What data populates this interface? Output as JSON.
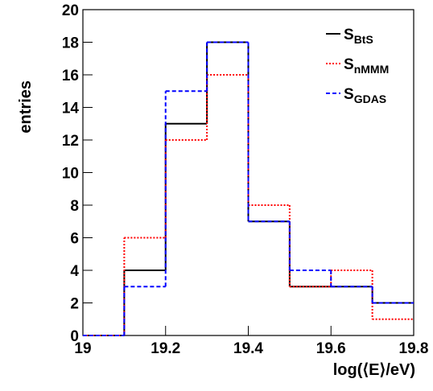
{
  "chart_data": {
    "type": "histogram",
    "x_label": "log(⟨E⟩/eV)",
    "y_label": "entries",
    "bins": [
      19,
      19.1,
      19.2,
      19.3,
      19.4,
      19.5,
      19.6,
      19.7,
      19.8
    ],
    "series": [
      {
        "name": "S_BtS",
        "color": "#000000",
        "dash": "solid",
        "values": [
          0,
          4,
          13,
          18,
          7,
          3,
          3,
          2
        ]
      },
      {
        "name": "S_nMMM",
        "color": "#ff0000",
        "dash": "dotted",
        "values": [
          0,
          6,
          12,
          16,
          8,
          3,
          4,
          1
        ]
      },
      {
        "name": "S_GDAS",
        "color": "#0000ff",
        "dash": "dashed",
        "values": [
          0,
          3,
          15,
          18,
          7,
          4,
          3,
          2
        ]
      }
    ],
    "xlim": [
      19,
      19.8
    ],
    "ylim": [
      0,
      20
    ],
    "xticks": [
      19,
      19.2,
      19.4,
      19.6,
      19.8
    ],
    "yticks": [
      0,
      2,
      4,
      6,
      8,
      10,
      12,
      14,
      16,
      18,
      20
    ],
    "legend": "upper right"
  }
}
